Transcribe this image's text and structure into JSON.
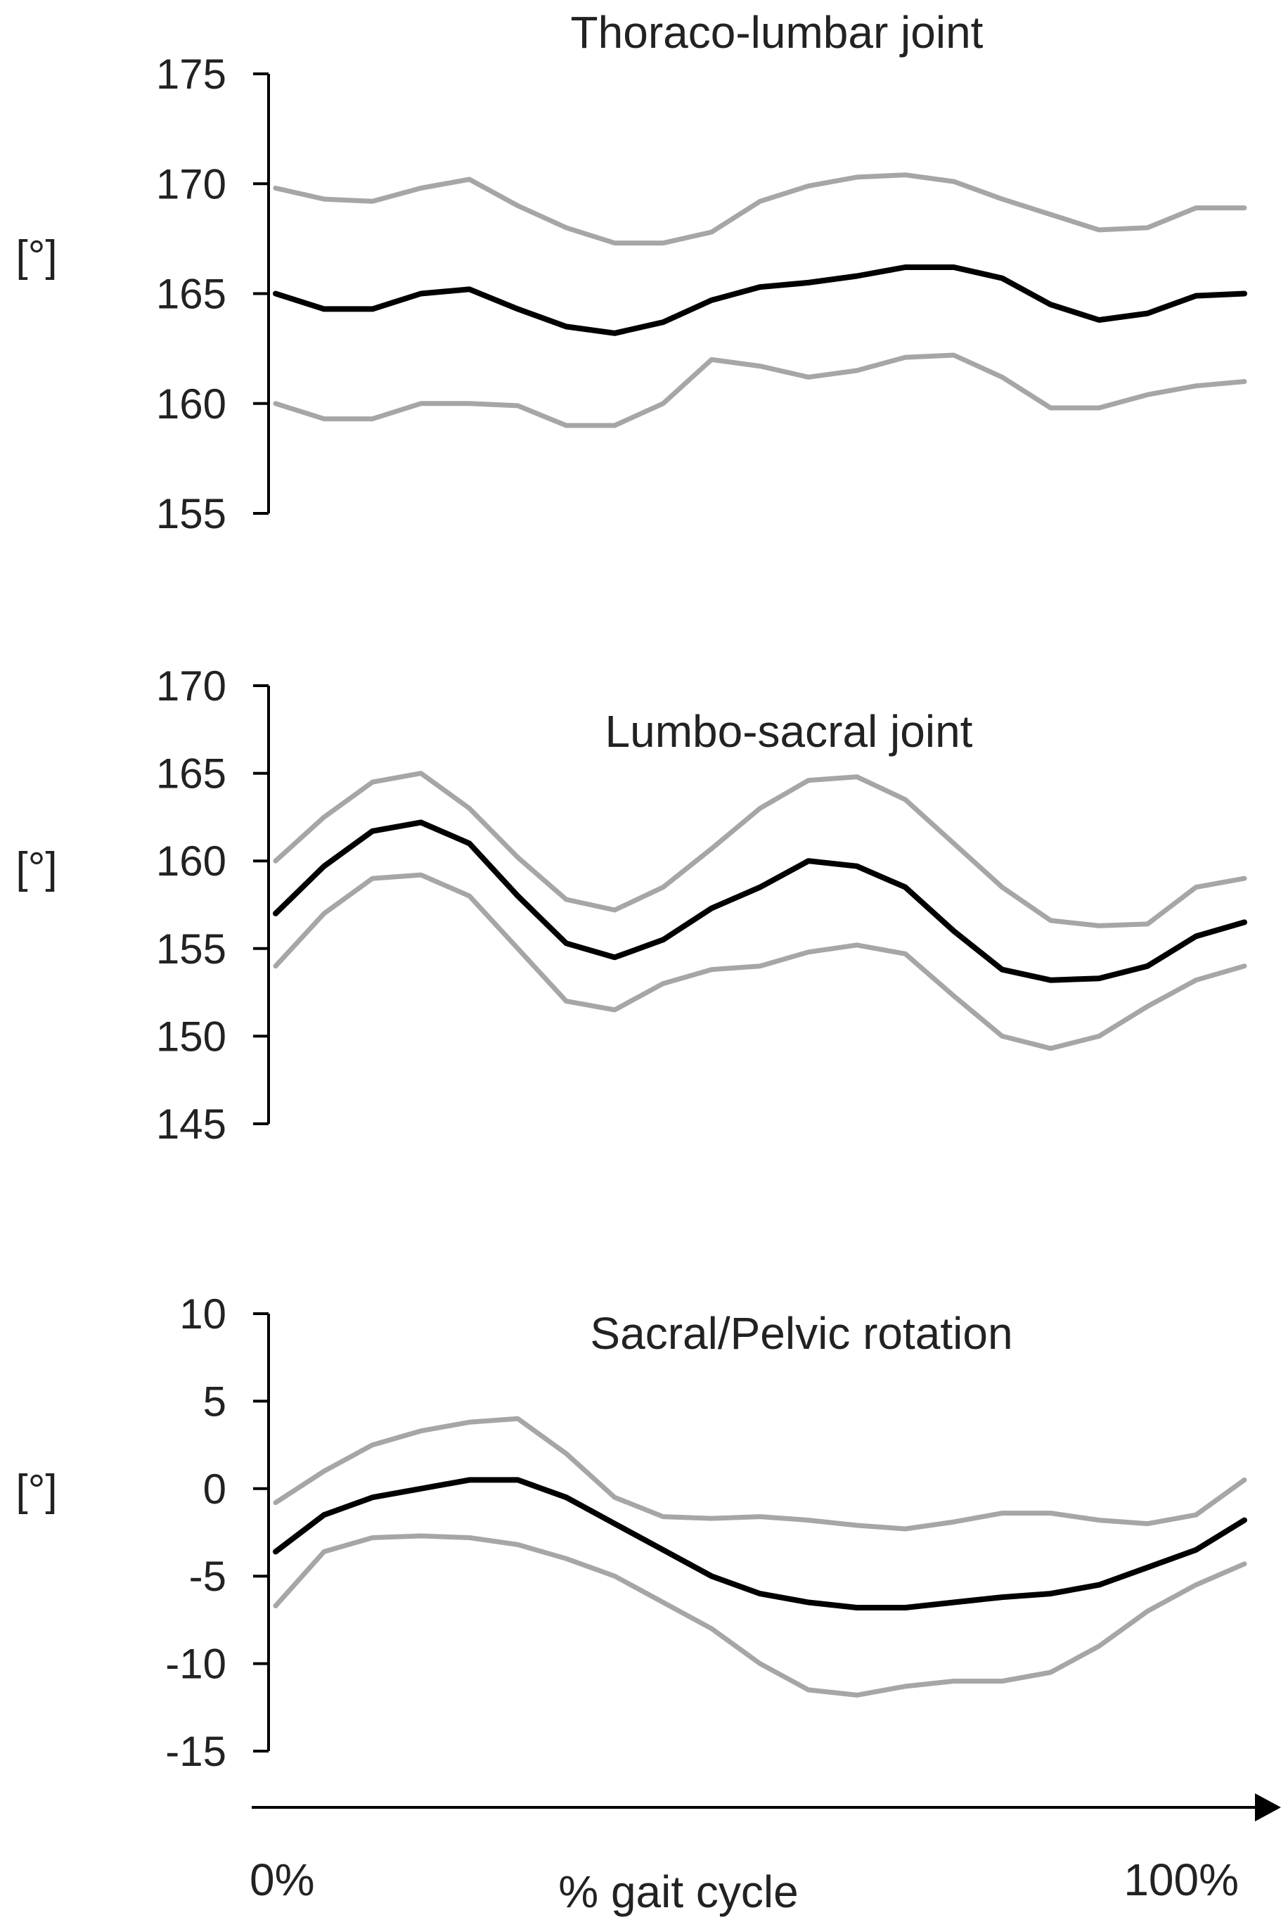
{
  "colors": {
    "mean": "#000000",
    "band": "#a6a6a6",
    "axis": "#000000",
    "text": "#222222"
  },
  "x_axis": {
    "start_label": "0%",
    "label": "% gait cycle",
    "end_label": "100%"
  },
  "chart_data": [
    {
      "type": "line",
      "title": "Thoraco-lumbar joint",
      "xlabel": "% gait cycle",
      "ylabel": "[°]",
      "xlim": [
        0,
        100
      ],
      "ylim": [
        155,
        175
      ],
      "yticks": [
        "175",
        "170",
        "165",
        "160",
        "155"
      ],
      "grid": false,
      "x": [
        0,
        5,
        10,
        15,
        20,
        25,
        30,
        35,
        40,
        45,
        50,
        55,
        60,
        65,
        70,
        75,
        80,
        85,
        90,
        95,
        100
      ],
      "series": [
        {
          "role": "upper",
          "values": [
            169.8,
            169.3,
            169.2,
            169.8,
            170.2,
            169.0,
            168.0,
            167.3,
            167.3,
            167.8,
            169.2,
            169.9,
            170.3,
            170.4,
            170.1,
            169.3,
            168.6,
            167.9,
            168.0,
            168.9,
            168.9
          ]
        },
        {
          "role": "mean",
          "values": [
            165.0,
            164.3,
            164.3,
            165.0,
            165.2,
            164.3,
            163.5,
            163.2,
            163.7,
            164.7,
            165.3,
            165.5,
            165.8,
            166.2,
            166.2,
            165.7,
            164.5,
            163.8,
            164.1,
            164.9,
            165.0
          ]
        },
        {
          "role": "lower",
          "values": [
            160.0,
            159.3,
            159.3,
            160.0,
            160.0,
            159.9,
            159.0,
            159.0,
            160.0,
            162.0,
            161.7,
            161.2,
            161.5,
            162.1,
            162.2,
            161.2,
            159.8,
            159.8,
            160.4,
            160.8,
            161.0
          ]
        }
      ]
    },
    {
      "type": "line",
      "title": "Lumbo-sacral joint",
      "xlabel": "% gait cycle",
      "ylabel": "[°]",
      "xlim": [
        0,
        100
      ],
      "ylim": [
        145,
        170
      ],
      "yticks": [
        "170",
        "165",
        "160",
        "155",
        "150",
        "145"
      ],
      "grid": false,
      "x": [
        0,
        5,
        10,
        15,
        20,
        25,
        30,
        35,
        40,
        45,
        50,
        55,
        60,
        65,
        70,
        75,
        80,
        85,
        90,
        95,
        100
      ],
      "series": [
        {
          "role": "upper",
          "values": [
            160.0,
            162.5,
            164.5,
            165.0,
            163.0,
            160.2,
            157.8,
            157.2,
            158.5,
            160.7,
            163.0,
            164.6,
            164.8,
            163.5,
            161.0,
            158.5,
            156.6,
            156.3,
            156.4,
            158.5,
            159.0
          ]
        },
        {
          "role": "mean",
          "values": [
            157.0,
            159.7,
            161.7,
            162.2,
            161.0,
            158.0,
            155.3,
            154.5,
            155.5,
            157.3,
            158.5,
            160.0,
            159.7,
            158.5,
            156.0,
            153.8,
            153.2,
            153.3,
            154.0,
            155.7,
            156.5
          ]
        },
        {
          "role": "lower",
          "values": [
            154.0,
            157.0,
            159.0,
            159.2,
            158.0,
            155.0,
            152.0,
            151.5,
            153.0,
            153.8,
            154.0,
            154.8,
            155.2,
            154.7,
            152.3,
            150.0,
            149.3,
            150.0,
            151.7,
            153.2,
            154.0
          ]
        }
      ]
    },
    {
      "type": "line",
      "title": "Sacral/Pelvic rotation",
      "xlabel": "% gait cycle",
      "ylabel": "[°]",
      "xlim": [
        0,
        100
      ],
      "ylim": [
        -15,
        10
      ],
      "yticks": [
        "10",
        "5",
        "0",
        "-5",
        "-10",
        "-15"
      ],
      "grid": false,
      "x": [
        0,
        5,
        10,
        15,
        20,
        25,
        30,
        35,
        40,
        45,
        50,
        55,
        60,
        65,
        70,
        75,
        80,
        85,
        90,
        95,
        100
      ],
      "series": [
        {
          "role": "upper",
          "values": [
            -0.8,
            1.0,
            2.5,
            3.3,
            3.8,
            4.0,
            2.0,
            -0.5,
            -1.6,
            -1.7,
            -1.6,
            -1.8,
            -2.1,
            -2.3,
            -1.9,
            -1.4,
            -1.4,
            -1.8,
            -2.0,
            -1.5,
            0.5
          ]
        },
        {
          "role": "mean",
          "values": [
            -3.6,
            -1.5,
            -0.5,
            0.0,
            0.5,
            0.5,
            -0.5,
            -2.0,
            -3.5,
            -5.0,
            -6.0,
            -6.5,
            -6.8,
            -6.8,
            -6.5,
            -6.2,
            -6.0,
            -5.5,
            -4.5,
            -3.5,
            -1.8
          ]
        },
        {
          "role": "lower",
          "values": [
            -6.7,
            -3.6,
            -2.8,
            -2.7,
            -2.8,
            -3.2,
            -4.0,
            -5.0,
            -6.5,
            -8.0,
            -10.0,
            -11.5,
            -11.8,
            -11.3,
            -11.0,
            -11.0,
            -10.5,
            -9.0,
            -7.0,
            -5.5,
            -4.3
          ]
        }
      ]
    }
  ]
}
